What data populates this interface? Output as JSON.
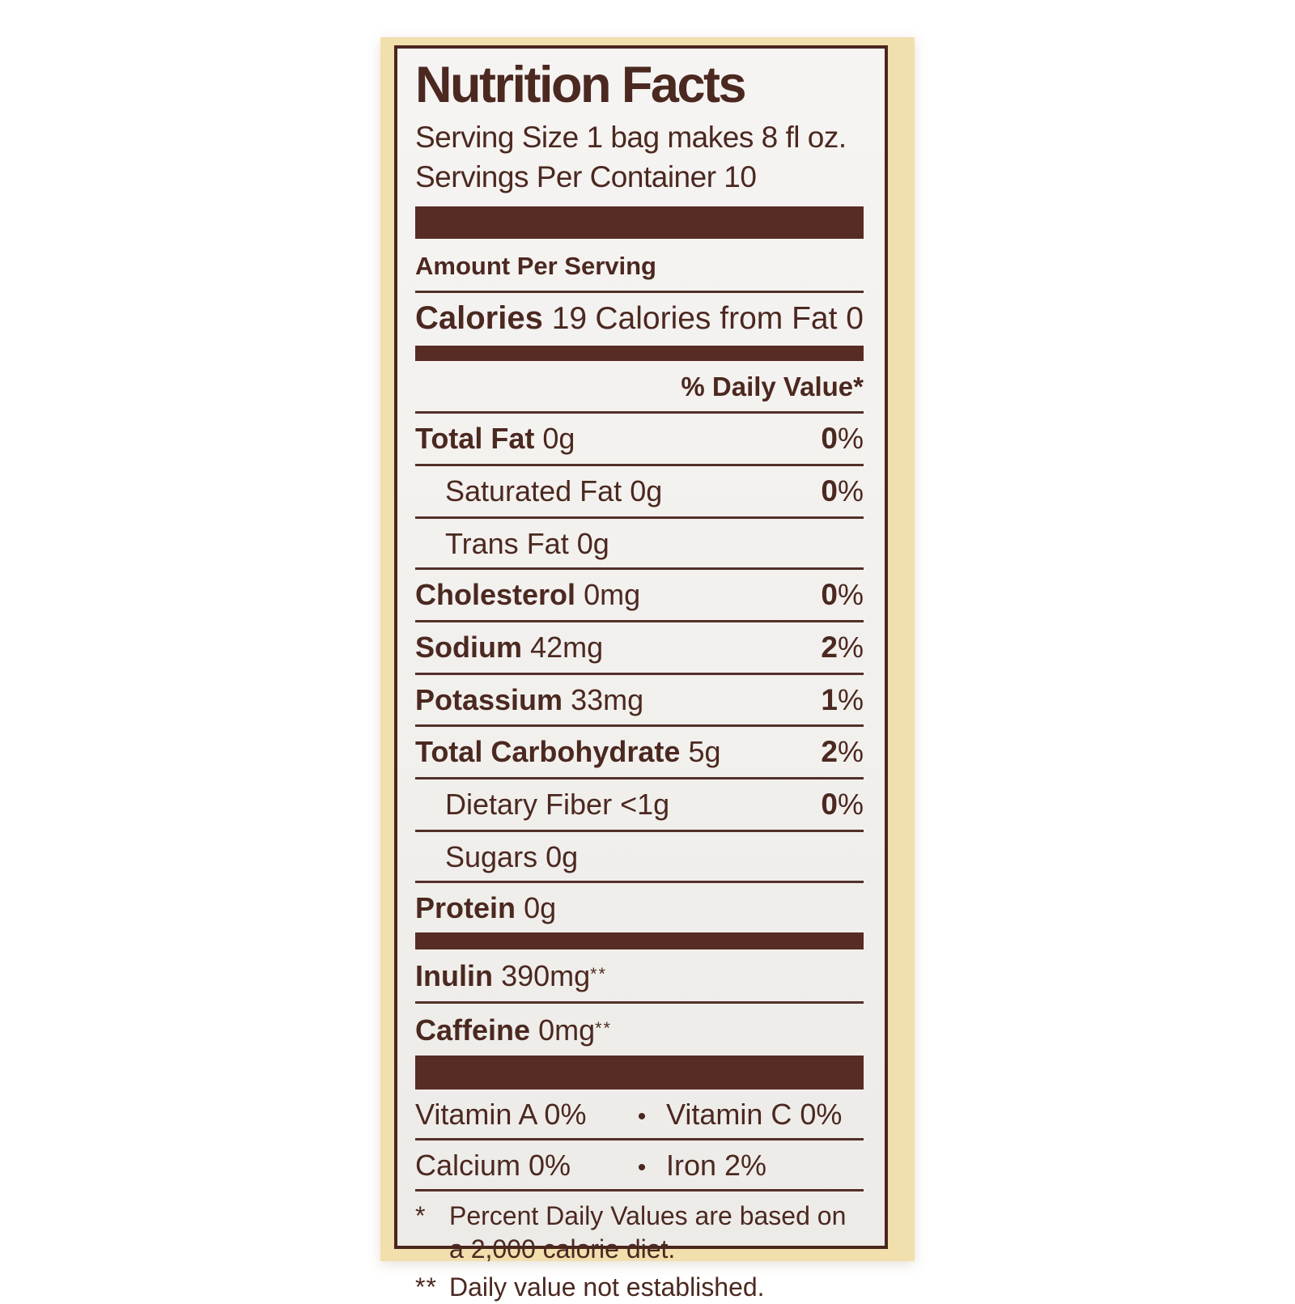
{
  "colors": {
    "text": "#4b2820",
    "bar": "#572c24",
    "cream": "#f1dfae",
    "paper": "#f4f2ef"
  },
  "strings": {
    "percent_sign": "%",
    "bullet": "•"
  },
  "label": {
    "title": "Nutrition Facts",
    "serving_size": "Serving Size 1 bag makes 8 fl oz.",
    "servings_per_container": "Servings Per Container 10",
    "amount_per_serving": "Amount Per Serving",
    "calories": {
      "label": "Calories",
      "value": "19",
      "from_fat_label": "Calories from Fat",
      "from_fat_value": "0"
    },
    "daily_value_header": "% Daily Value*",
    "rows": [
      {
        "name": "Total Fat",
        "value": "0g",
        "percent": "0"
      },
      {
        "name": "Saturated Fat",
        "value": "0g",
        "percent": "0"
      },
      {
        "name": "Trans Fat",
        "value": "0g"
      },
      {
        "name": "Cholesterol",
        "value": "0mg",
        "percent": "0"
      },
      {
        "name": "Sodium",
        "value": "42mg",
        "percent": "2"
      },
      {
        "name": "Potassium",
        "value": "33mg",
        "percent": "1"
      },
      {
        "name": "Total Carbohydrate",
        "value": "5g",
        "percent": "2"
      },
      {
        "name": "Dietary Fiber",
        "value": "<1g",
        "percent": "0"
      },
      {
        "name": "Sugars",
        "value": "0g"
      },
      {
        "name": "Protein",
        "value": "0g"
      }
    ],
    "supplements": [
      {
        "name": "Inulin",
        "value": "390mg",
        "note": "**"
      },
      {
        "name": "Caffeine",
        "value": "0mg",
        "note": "**"
      }
    ],
    "micronutrients": [
      {
        "left": "Vitamin A 0%",
        "right": "Vitamin C 0%"
      },
      {
        "left": "Calcium 0%",
        "right": "Iron 2%"
      }
    ],
    "footnotes": [
      {
        "marker": "*",
        "text": "Percent Daily Values are based on a 2,000 calorie diet."
      },
      {
        "marker": "**",
        "text": "Daily value not established."
      }
    ]
  }
}
